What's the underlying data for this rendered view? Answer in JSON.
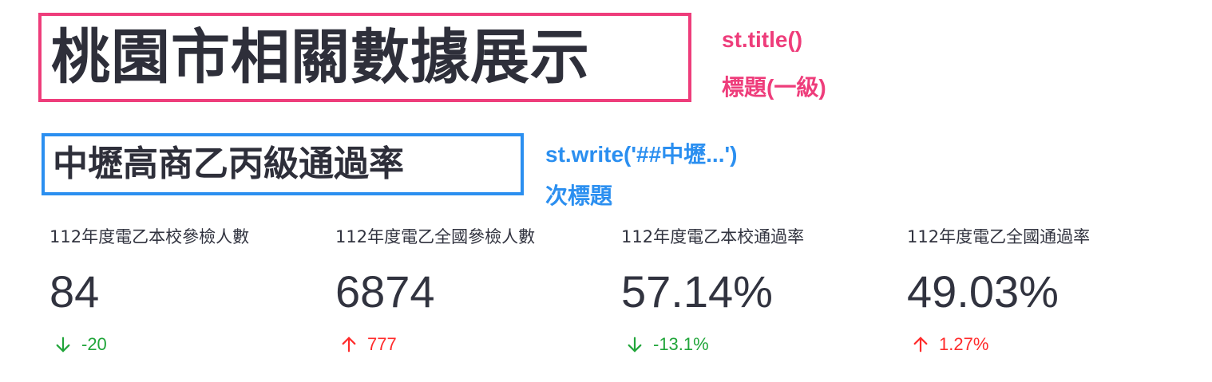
{
  "title": "桃園市相關數據展示",
  "title_annotation": {
    "code": "st.title()",
    "caption": "標題(一級)"
  },
  "subtitle": "中壢高商乙丙級通過率",
  "subtitle_annotation": {
    "code": "st.write('##中壢...')",
    "caption": "次標題"
  },
  "metrics": [
    {
      "label": "112年度電乙本校參檢人數",
      "value": "84",
      "delta": "-20",
      "direction": "down",
      "delta_color": "#21a53a"
    },
    {
      "label": "112年度電乙全國參檢人數",
      "value": "6874",
      "delta": "777",
      "direction": "up",
      "delta_color": "#ff2b2b"
    },
    {
      "label": "112年度電乙本校通過率",
      "value": "57.14%",
      "delta": "-13.1%",
      "direction": "down",
      "delta_color": "#21a53a"
    },
    {
      "label": "112年度電乙全國通過率",
      "value": "49.03%",
      "delta": "1.27%",
      "direction": "up",
      "delta_color": "#ff2b2b"
    }
  ],
  "colors": {
    "annotation_pink": "#ee3d7b",
    "annotation_blue": "#2b8ff0",
    "text": "#31333f"
  }
}
